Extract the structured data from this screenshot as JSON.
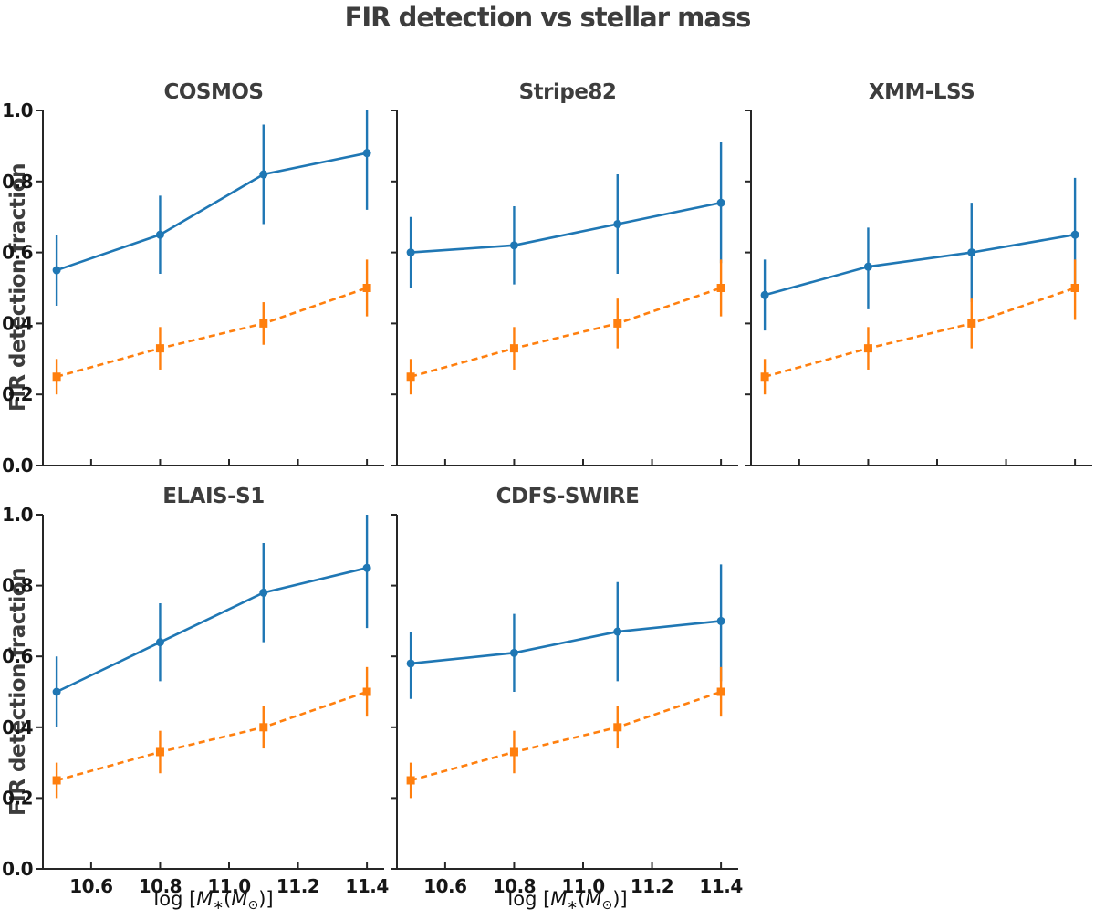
{
  "figure_title": "FIR detection vs stellar mass",
  "ylabel": "FIR detection fraction",
  "xlabel_text": "log [M∗(M⊙)]",
  "xlabel_parts": {
    "log": "log [",
    "m1": "M",
    "star": "∗",
    "open_paren": "(",
    "m2": "M",
    "sun": "⊙",
    "close": ")]"
  },
  "colors": {
    "series_blue": "#1f77b4",
    "series_orange": "#ff7f0e",
    "spine": "#262626",
    "tick_text": "#161616",
    "title_text": "#3d3d3d",
    "background": "#ffffff"
  },
  "chart_data": {
    "type": "line",
    "title": "FIR detection vs stellar mass",
    "xlabel": "log [M∗(M⊙)]",
    "ylabel": "FIR detection fraction",
    "x": [
      10.5,
      10.8,
      11.1,
      11.4
    ],
    "xlim": [
      10.46,
      11.45
    ],
    "ylim": [
      0.0,
      1.0
    ],
    "xtick_values": [
      10.6,
      10.8,
      11.0,
      11.2,
      11.4
    ],
    "xticks": [
      "10.6",
      "10.8",
      "11.0",
      "11.2",
      "11.4"
    ],
    "ytick_values": [
      0.0,
      0.2,
      0.4,
      0.6,
      0.8,
      1.0
    ],
    "yticks": [
      "0.0",
      "0.2",
      "0.4",
      "0.6",
      "0.8",
      "1.0"
    ],
    "grid": false,
    "legend": "none",
    "series_style": [
      {
        "id": "blue-solid-circles",
        "color": "#1f77b4",
        "line": "solid",
        "marker": "circle"
      },
      {
        "id": "orange-dashed-squares",
        "color": "#ff7f0e",
        "line": "dashed",
        "marker": "square"
      }
    ],
    "panels": [
      {
        "title": "COSMOS",
        "row": 0,
        "col": 0,
        "show_ytick_labels": true,
        "show_xtick_labels": false,
        "series": [
          {
            "y": [
              0.55,
              0.65,
              0.82,
              0.88
            ],
            "err_lo": [
              0.45,
              0.54,
              0.68,
              0.72
            ],
            "err_hi": [
              0.65,
              0.76,
              0.96,
              1.0
            ]
          },
          {
            "y": [
              0.25,
              0.33,
              0.4,
              0.5
            ],
            "err_lo": [
              0.2,
              0.27,
              0.34,
              0.42
            ],
            "err_hi": [
              0.3,
              0.39,
              0.46,
              0.58
            ]
          }
        ]
      },
      {
        "title": "Stripe82",
        "row": 0,
        "col": 1,
        "show_ytick_labels": false,
        "show_xtick_labels": false,
        "series": [
          {
            "y": [
              0.6,
              0.62,
              0.68,
              0.74
            ],
            "err_lo": [
              0.5,
              0.51,
              0.54,
              0.57
            ],
            "err_hi": [
              0.7,
              0.73,
              0.82,
              0.91
            ]
          },
          {
            "y": [
              0.25,
              0.33,
              0.4,
              0.5
            ],
            "err_lo": [
              0.2,
              0.27,
              0.33,
              0.42
            ],
            "err_hi": [
              0.3,
              0.39,
              0.47,
              0.58
            ]
          }
        ]
      },
      {
        "title": "XMM-LSS",
        "row": 0,
        "col": 2,
        "show_ytick_labels": false,
        "show_xtick_labels": false,
        "series": [
          {
            "y": [
              0.48,
              0.56,
              0.6,
              0.65
            ],
            "err_lo": [
              0.38,
              0.44,
              0.46,
              0.49
            ],
            "err_hi": [
              0.58,
              0.67,
              0.74,
              0.81
            ]
          },
          {
            "y": [
              0.25,
              0.33,
              0.4,
              0.5
            ],
            "err_lo": [
              0.2,
              0.27,
              0.33,
              0.41
            ],
            "err_hi": [
              0.3,
              0.39,
              0.47,
              0.58
            ]
          }
        ]
      },
      {
        "title": "ELAIS-S1",
        "row": 1,
        "col": 0,
        "show_ytick_labels": true,
        "show_xtick_labels": true,
        "series": [
          {
            "y": [
              0.5,
              0.64,
              0.78,
              0.85
            ],
            "err_lo": [
              0.4,
              0.53,
              0.64,
              0.68
            ],
            "err_hi": [
              0.6,
              0.75,
              0.92,
              1.0
            ]
          },
          {
            "y": [
              0.25,
              0.33,
              0.4,
              0.5
            ],
            "err_lo": [
              0.2,
              0.27,
              0.34,
              0.43
            ],
            "err_hi": [
              0.3,
              0.39,
              0.46,
              0.57
            ]
          }
        ]
      },
      {
        "title": "CDFS-SWIRE",
        "row": 1,
        "col": 1,
        "show_ytick_labels": false,
        "show_xtick_labels": true,
        "series": [
          {
            "y": [
              0.58,
              0.61,
              0.67,
              0.7
            ],
            "err_lo": [
              0.48,
              0.5,
              0.53,
              0.53
            ],
            "err_hi": [
              0.67,
              0.72,
              0.81,
              0.86
            ]
          },
          {
            "y": [
              0.25,
              0.33,
              0.4,
              0.5
            ],
            "err_lo": [
              0.2,
              0.27,
              0.34,
              0.43
            ],
            "err_hi": [
              0.3,
              0.39,
              0.46,
              0.57
            ]
          }
        ]
      }
    ]
  }
}
